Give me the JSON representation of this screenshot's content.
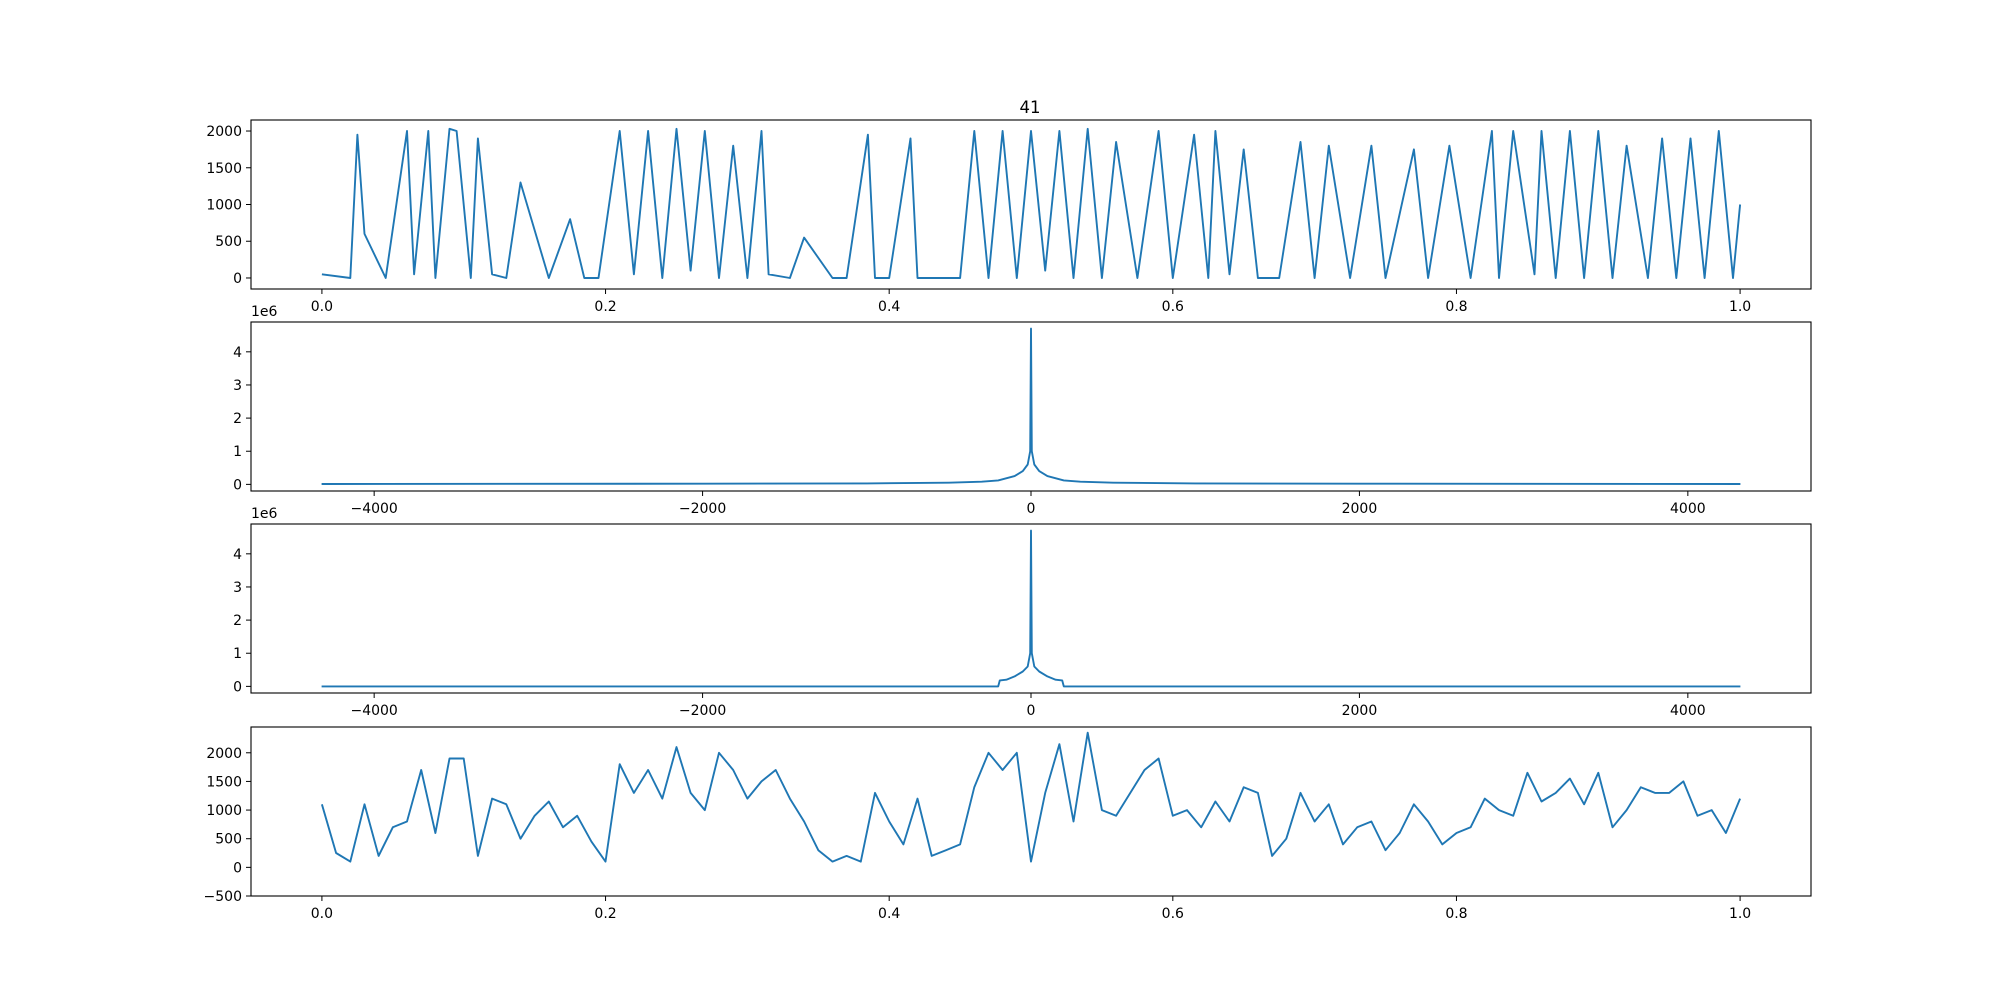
{
  "figure": {
    "title": "41",
    "line_color": "#1f77b4"
  },
  "chart_data": [
    {
      "type": "line",
      "title": "41",
      "xlabel": "",
      "ylabel": "",
      "xlim": [
        -0.05,
        1.05
      ],
      "ylim": [
        -150,
        2150
      ],
      "xticks": [
        0.0,
        0.2,
        0.4,
        0.6,
        0.8,
        1.0
      ],
      "xtick_labels": [
        "0.0",
        "0.2",
        "0.4",
        "0.6",
        "0.8",
        "1.0"
      ],
      "yticks": [
        0,
        500,
        1000,
        1500,
        2000
      ],
      "ytick_labels": [
        "0",
        "500",
        "1000",
        "1500",
        "2000"
      ],
      "offset_label": "",
      "grid": false,
      "series": [
        {
          "x": [
            0.0,
            0.02,
            0.025,
            0.03,
            0.045,
            0.06,
            0.065,
            0.075,
            0.08,
            0.09,
            0.095,
            0.105,
            0.11,
            0.12,
            0.13,
            0.14,
            0.16,
            0.175,
            0.185,
            0.195,
            0.21,
            0.22,
            0.23,
            0.24,
            0.25,
            0.26,
            0.27,
            0.28,
            0.29,
            0.3,
            0.31,
            0.315,
            0.33,
            0.34,
            0.36,
            0.37,
            0.385,
            0.39,
            0.4,
            0.415,
            0.42,
            0.43,
            0.45,
            0.46,
            0.47,
            0.48,
            0.49,
            0.5,
            0.51,
            0.52,
            0.53,
            0.54,
            0.55,
            0.56,
            0.575,
            0.59,
            0.6,
            0.615,
            0.625,
            0.63,
            0.64,
            0.65,
            0.66,
            0.675,
            0.69,
            0.7,
            0.71,
            0.725,
            0.74,
            0.75,
            0.77,
            0.78,
            0.795,
            0.81,
            0.825,
            0.83,
            0.84,
            0.855,
            0.86,
            0.87,
            0.88,
            0.89,
            0.9,
            0.91,
            0.92,
            0.935,
            0.945,
            0.955,
            0.965,
            0.975,
            0.985,
            0.995,
            1.0
          ],
          "y": [
            50,
            0,
            1950,
            600,
            0,
            2000,
            50,
            2000,
            0,
            2030,
            2000,
            0,
            1900,
            50,
            0,
            1300,
            0,
            800,
            0,
            0,
            2000,
            50,
            2000,
            0,
            2030,
            100,
            2000,
            0,
            1800,
            0,
            2000,
            50,
            0,
            550,
            0,
            0,
            1950,
            0,
            0,
            1900,
            0,
            0,
            0,
            2000,
            0,
            2000,
            0,
            2000,
            100,
            2000,
            0,
            2030,
            0,
            1850,
            0,
            2000,
            0,
            1950,
            0,
            2000,
            50,
            1750,
            0,
            0,
            1850,
            0,
            1800,
            0,
            1800,
            0,
            1750,
            0,
            1800,
            0,
            2000,
            0,
            2000,
            50,
            2000,
            0,
            2000,
            0,
            2000,
            0,
            1800,
            0,
            1900,
            0,
            1900,
            0,
            2000,
            0,
            1000
          ]
        }
      ]
    },
    {
      "type": "line",
      "title": "",
      "xlabel": "",
      "ylabel": "",
      "xlim": [
        -4750,
        4750
      ],
      "ylim": [
        -0.2,
        4.9
      ],
      "xticks": [
        -4000,
        -2000,
        0,
        2000,
        4000
      ],
      "xtick_labels": [
        "−4000",
        "−2000",
        "0",
        "2000",
        "4000"
      ],
      "yticks": [
        0,
        1,
        2,
        3,
        4
      ],
      "ytick_labels": [
        "0",
        "1",
        "2",
        "3",
        "4"
      ],
      "offset_label": "1e6",
      "grid": false,
      "series": [
        {
          "x": [
            -4320,
            -2000,
            -1000,
            -500,
            -300,
            -200,
            -100,
            -50,
            -20,
            -5,
            0,
            5,
            20,
            50,
            100,
            200,
            300,
            500,
            1000,
            2000,
            4320
          ],
          "y": [
            0.01,
            0.02,
            0.03,
            0.05,
            0.08,
            0.12,
            0.25,
            0.4,
            0.6,
            1.0,
            4.7,
            1.0,
            0.6,
            0.4,
            0.25,
            0.12,
            0.08,
            0.05,
            0.03,
            0.02,
            0.01
          ]
        }
      ]
    },
    {
      "type": "line",
      "title": "",
      "xlabel": "",
      "ylabel": "",
      "xlim": [
        -4750,
        4750
      ],
      "ylim": [
        -0.2,
        4.9
      ],
      "xticks": [
        -4000,
        -2000,
        0,
        2000,
        4000
      ],
      "xtick_labels": [
        "−4000",
        "−2000",
        "0",
        "2000",
        "4000"
      ],
      "yticks": [
        0,
        1,
        2,
        3,
        4
      ],
      "ytick_labels": [
        "0",
        "1",
        "2",
        "3",
        "4"
      ],
      "offset_label": "1e6",
      "grid": false,
      "series": [
        {
          "x": [
            -4320,
            -200,
            -190,
            -150,
            -100,
            -50,
            -20,
            -5,
            0,
            5,
            20,
            50,
            100,
            150,
            190,
            200,
            4320
          ],
          "y": [
            0.0,
            0.0,
            0.18,
            0.2,
            0.3,
            0.45,
            0.6,
            1.0,
            4.7,
            1.0,
            0.6,
            0.45,
            0.3,
            0.2,
            0.18,
            0.0,
            0.0
          ]
        }
      ]
    },
    {
      "type": "line",
      "title": "",
      "xlabel": "",
      "ylabel": "",
      "xlim": [
        -0.05,
        1.05
      ],
      "ylim": [
        -500,
        2450
      ],
      "xticks": [
        0.0,
        0.2,
        0.4,
        0.6,
        0.8,
        1.0
      ],
      "xtick_labels": [
        "0.0",
        "0.2",
        "0.4",
        "0.6",
        "0.8",
        "1.0"
      ],
      "yticks": [
        -500,
        0,
        500,
        1000,
        1500,
        2000
      ],
      "ytick_labels": [
        "−500",
        "0",
        "500",
        "1000",
        "1500",
        "2000"
      ],
      "offset_label": "",
      "grid": false,
      "series": [
        {
          "x": [
            0.0,
            0.01,
            0.02,
            0.03,
            0.04,
            0.05,
            0.06,
            0.07,
            0.08,
            0.09,
            0.1,
            0.11,
            0.12,
            0.13,
            0.14,
            0.15,
            0.16,
            0.17,
            0.18,
            0.19,
            0.2,
            0.21,
            0.22,
            0.23,
            0.24,
            0.25,
            0.26,
            0.27,
            0.28,
            0.29,
            0.3,
            0.31,
            0.32,
            0.33,
            0.34,
            0.35,
            0.36,
            0.37,
            0.38,
            0.39,
            0.4,
            0.41,
            0.42,
            0.43,
            0.44,
            0.45,
            0.46,
            0.47,
            0.48,
            0.49,
            0.5,
            0.51,
            0.52,
            0.53,
            0.54,
            0.55,
            0.56,
            0.57,
            0.58,
            0.59,
            0.6,
            0.61,
            0.62,
            0.63,
            0.64,
            0.65,
            0.66,
            0.67,
            0.68,
            0.69,
            0.7,
            0.71,
            0.72,
            0.73,
            0.74,
            0.75,
            0.76,
            0.77,
            0.78,
            0.79,
            0.8,
            0.81,
            0.82,
            0.83,
            0.84,
            0.85,
            0.86,
            0.87,
            0.88,
            0.89,
            0.9,
            0.91,
            0.92,
            0.93,
            0.94,
            0.95,
            0.96,
            0.97,
            0.98,
            0.99,
            1.0
          ],
          "y": [
            1100,
            250,
            100,
            1100,
            200,
            700,
            800,
            1700,
            600,
            1900,
            1900,
            200,
            1200,
            1100,
            500,
            900,
            1150,
            700,
            900,
            450,
            100,
            1800,
            1300,
            1700,
            1200,
            2100,
            1300,
            1000,
            2000,
            1700,
            1200,
            1500,
            1700,
            1200,
            800,
            300,
            100,
            200,
            100,
            1300,
            800,
            400,
            1200,
            200,
            300,
            400,
            1400,
            2000,
            1700,
            2000,
            100,
            1300,
            2150,
            800,
            2350,
            1000,
            900,
            1300,
            1700,
            1900,
            900,
            1000,
            700,
            1150,
            800,
            1400,
            1300,
            200,
            500,
            1300,
            800,
            1100,
            400,
            700,
            800,
            300,
            600,
            1100,
            800,
            400,
            600,
            700,
            1200,
            1000,
            900,
            1650,
            1150,
            1300,
            1550,
            1100,
            1650,
            700,
            1000,
            1400,
            1300,
            1300,
            1500,
            900,
            1000,
            600,
            1200
          ]
        }
      ]
    }
  ]
}
